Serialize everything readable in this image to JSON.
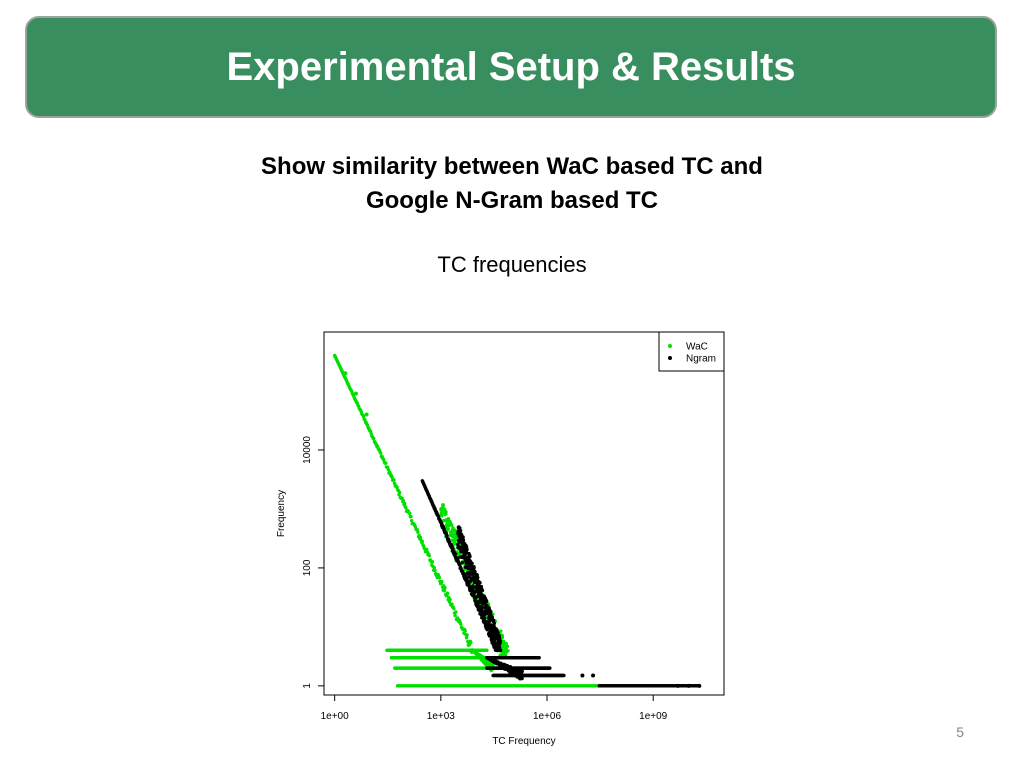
{
  "slide": {
    "title": "Experimental Setup & Results",
    "subtitle_line1": "Show similarity between WaC based TC and",
    "subtitle_line2": "Google N-Gram based TC",
    "caption": "TC frequencies",
    "page_number": "5",
    "colors": {
      "header_bg": "#388e5e",
      "header_border": "#9aa39c"
    }
  },
  "chart_data": {
    "type": "scatter",
    "title": "",
    "xlabel": "TC Frequency",
    "ylabel": "Frequency",
    "x_scale": "log",
    "y_scale": "log",
    "xlim": [
      0.5,
      100000000000.0
    ],
    "ylim": [
      0.7,
      1000000.0
    ],
    "x_ticks": [
      1,
      1000,
      1000000,
      1000000000
    ],
    "x_tick_labels": [
      "1e+00",
      "1e+03",
      "1e+06",
      "1e+09"
    ],
    "y_ticks": [
      1,
      100,
      10000
    ],
    "y_tick_labels": [
      "1",
      "100",
      "10000"
    ],
    "grid": false,
    "legend_position": "top-right",
    "series": [
      {
        "name": "WaC",
        "color": "#00e000",
        "segments": [
          {
            "x": [
              1,
              8000
            ],
            "y": [
              400000,
              4
            ]
          },
          {
            "x": [
              8000,
              30000
            ],
            "y": [
              4,
              2
            ]
          }
        ],
        "hlines": [
          {
            "y": 4,
            "x": [
              30,
              20000
            ]
          },
          {
            "y": 3,
            "x": [
              40,
              30000
            ]
          },
          {
            "y": 2,
            "x": [
              50,
              100000
            ]
          },
          {
            "y": 1,
            "x": [
              60,
              30000000
            ]
          }
        ],
        "scatter_x_range": [
          1000,
          80000
        ],
        "scatter_y_range": [
          3,
          1000
        ],
        "outliers": [
          [
            2,
            200000
          ],
          [
            4,
            90000
          ],
          [
            8,
            40000
          ]
        ]
      },
      {
        "name": "Ngram",
        "color": "#000000",
        "segments": [
          {
            "x": [
              300,
              40000
            ],
            "y": [
              3000,
              4
            ]
          },
          {
            "x": [
              20000,
              200000
            ],
            "y": [
              3,
              1.5
            ]
          }
        ],
        "hlines": [
          {
            "y": 3,
            "x": [
              20000,
              600000
            ]
          },
          {
            "y": 2,
            "x": [
              20000,
              1200000
            ]
          },
          {
            "y": 1.5,
            "x": [
              30000,
              3000000
            ]
          },
          {
            "y": 1,
            "x": [
              30000000,
              20000000000
            ]
          }
        ],
        "scatter_x_range": [
          3000,
          50000
        ],
        "scatter_y_range": [
          4,
          400
        ],
        "outliers": [
          [
            10000000,
            1.5
          ],
          [
            20000000,
            1.5
          ],
          [
            5000000000,
            1
          ],
          [
            10000000000,
            1
          ],
          [
            20000000000,
            1
          ]
        ]
      }
    ]
  }
}
